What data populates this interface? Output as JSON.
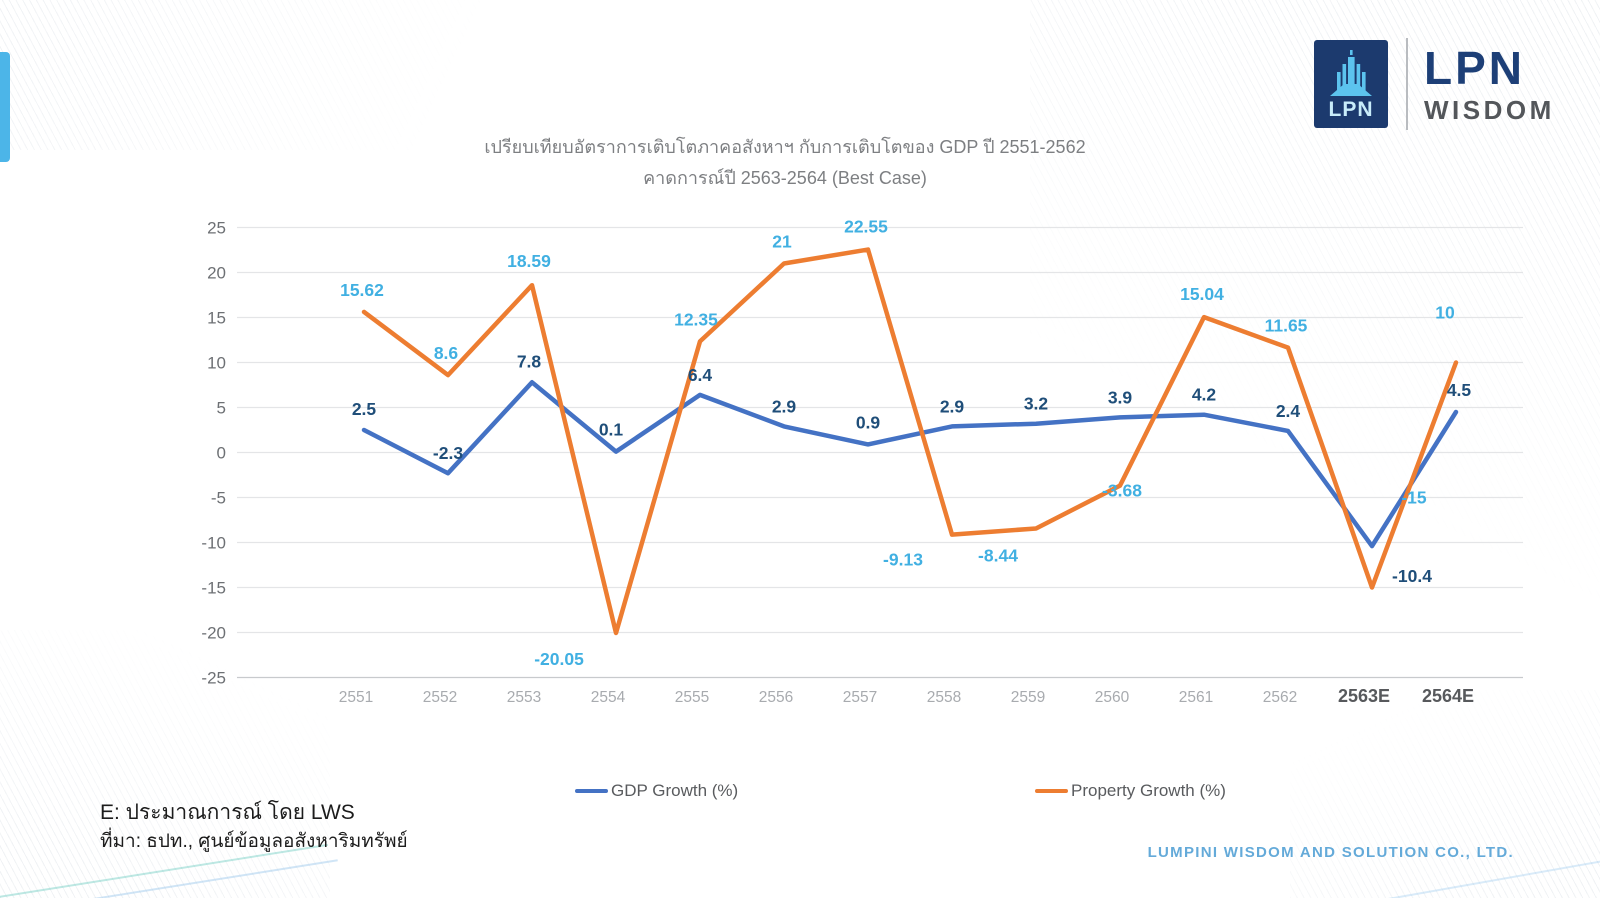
{
  "page": {
    "title_line1": "เปรียบเทียบอัตราการเติบโตภาคอสังหาฯ กับการเติบโตของ GDP ปี 2551-2562",
    "title_line2": "คาดการณ์ปี 2563-2564 (Best Case)",
    "footnote_line1": "E: ประมาณการณ์ โดย LWS",
    "footnote_line2": "ที่มา: ธปท., ศูนย์ข้อมูลอสังหาริมทรัพย์",
    "footer_company": "LUMPINI WISDOM AND SOLUTION CO., LTD."
  },
  "logo": {
    "mark_text": "LPN",
    "word_top": "LPN",
    "word_bottom": "WISDOM"
  },
  "colors": {
    "left_tab": "#4cb5e8",
    "logo_navy": "#1c3a6e",
    "logo_icon_blue": "#5cc3ee",
    "gridline": "#e4e5e7",
    "baseline": "#c8cacd",
    "y_tick": "#6d7074",
    "x_tick_history": "#a8abaf",
    "x_tick_forecast": "#57595c",
    "title": "#7d7f82",
    "footer_blue": "#64aad9"
  },
  "chart_data": {
    "type": "line",
    "categories": [
      "2551",
      "2552",
      "2553",
      "2554",
      "2555",
      "2556",
      "2557",
      "2558",
      "2559",
      "2560",
      "2561",
      "2562",
      "2563E",
      "2564E"
    ],
    "series": [
      {
        "name": "GDP Growth (%)",
        "color": "#4472c4",
        "label_color": "#1f4e79",
        "values": [
          2.5,
          -2.3,
          7.8,
          0.1,
          6.4,
          2.9,
          0.9,
          2.9,
          3.2,
          3.9,
          4.2,
          2.4,
          -10.4,
          4.5
        ],
        "label_offsets": [
          [
            0,
            -15
          ],
          [
            0,
            -14
          ],
          [
            -3,
            -15
          ],
          [
            -5,
            -16
          ],
          [
            0,
            -14
          ],
          [
            0,
            -14
          ],
          [
            0,
            -16
          ],
          [
            0,
            -14
          ],
          [
            0,
            -14
          ],
          [
            0,
            -14
          ],
          [
            0,
            -14
          ],
          [
            0,
            -14
          ],
          [
            40,
            36
          ],
          [
            3,
            -16
          ]
        ]
      },
      {
        "name": "Property Growth (%)",
        "color": "#ed7d31",
        "label_color": "#41b0e2",
        "values": [
          15.62,
          8.6,
          18.59,
          -20.05,
          12.35,
          21,
          22.55,
          -9.13,
          -8.44,
          -3.68,
          15.04,
          11.65,
          -15,
          10
        ],
        "label_offsets": [
          [
            -2,
            -16
          ],
          [
            -2,
            -16
          ],
          [
            -3,
            -18
          ],
          [
            -57,
            32
          ],
          [
            -4,
            -16
          ],
          [
            -2,
            -16
          ],
          [
            -2,
            -17
          ],
          [
            -49,
            31
          ],
          [
            -38,
            33
          ],
          [
            2,
            11
          ],
          [
            -2,
            -17
          ],
          [
            -2,
            -16
          ],
          [
            42,
            -84
          ],
          [
            -11,
            -44
          ]
        ]
      }
    ],
    "ylim": [
      -25,
      25
    ],
    "ytick_step": 5,
    "grid": "horizontal",
    "legend_position": "bottom",
    "title": "เปรียบเทียบอัตราการเติบโตภาคอสังหาฯ กับการเติบโตของ GDP ปี 2551-2562 คาดการณ์ปี 2563-2564 (Best Case)"
  }
}
